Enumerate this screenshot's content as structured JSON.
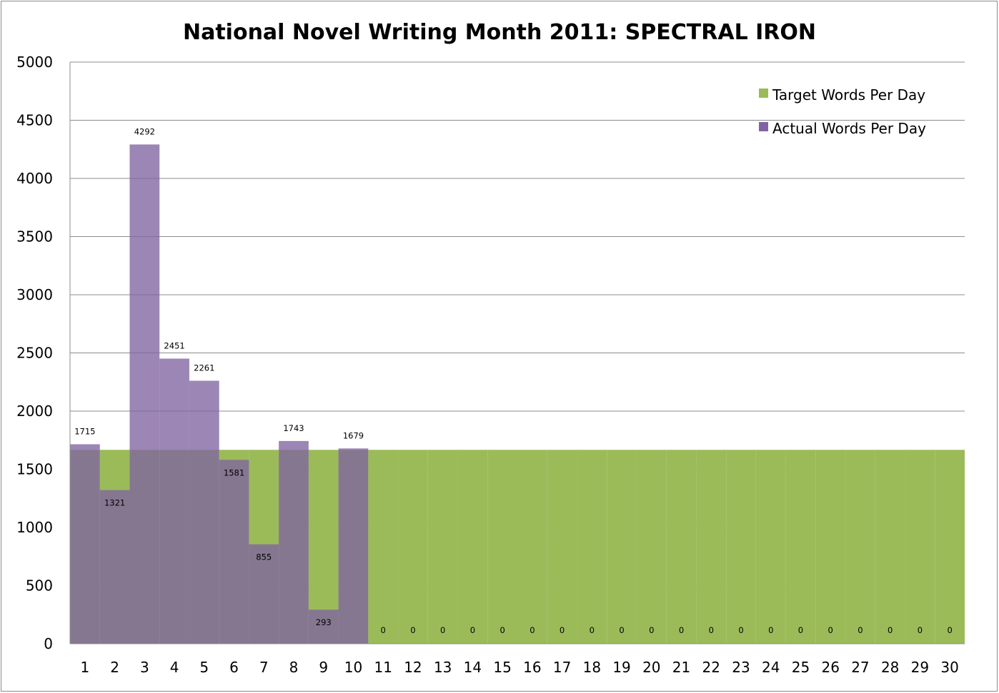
{
  "chart_data": {
    "type": "bar",
    "title": "National Novel Writing Month 2011: SPECTRAL IRON",
    "xlabel": "",
    "ylabel": "",
    "ylim": [
      0,
      5000
    ],
    "yticks": [
      0,
      500,
      1000,
      1500,
      2000,
      2500,
      3000,
      3500,
      4000,
      4500,
      5000
    ],
    "grid": true,
    "legend_position": "top-right",
    "overlap": true,
    "categories": [
      "1",
      "2",
      "3",
      "4",
      "5",
      "6",
      "7",
      "8",
      "9",
      "10",
      "11",
      "12",
      "13",
      "14",
      "15",
      "16",
      "17",
      "18",
      "19",
      "20",
      "21",
      "22",
      "23",
      "24",
      "25",
      "26",
      "27",
      "28",
      "29",
      "30"
    ],
    "series": [
      {
        "name": "Target Words Per Day",
        "color": "#9bbb59",
        "values": [
          1667,
          1667,
          1667,
          1667,
          1667,
          1667,
          1667,
          1667,
          1667,
          1667,
          1667,
          1667,
          1667,
          1667,
          1667,
          1667,
          1667,
          1667,
          1667,
          1667,
          1667,
          1667,
          1667,
          1667,
          1667,
          1667,
          1667,
          1667,
          1667,
          1667
        ]
      },
      {
        "name": "Actual Words Per Day",
        "color": "#8064a2",
        "values": [
          1715,
          1321,
          4292,
          2451,
          2261,
          1581,
          855,
          1743,
          293,
          1679,
          0,
          0,
          0,
          0,
          0,
          0,
          0,
          0,
          0,
          0,
          0,
          0,
          0,
          0,
          0,
          0,
          0,
          0,
          0,
          0
        ],
        "data_labels": [
          "1715",
          "1321",
          "4292",
          "2451",
          "2261",
          "1581",
          "855",
          "1743",
          "293",
          "1679",
          "0",
          "0",
          "0",
          "0",
          "0",
          "0",
          "0",
          "0",
          "0",
          "0",
          "0",
          "0",
          "0",
          "0",
          "0",
          "0",
          "0",
          "0",
          "0",
          "0"
        ]
      }
    ]
  }
}
